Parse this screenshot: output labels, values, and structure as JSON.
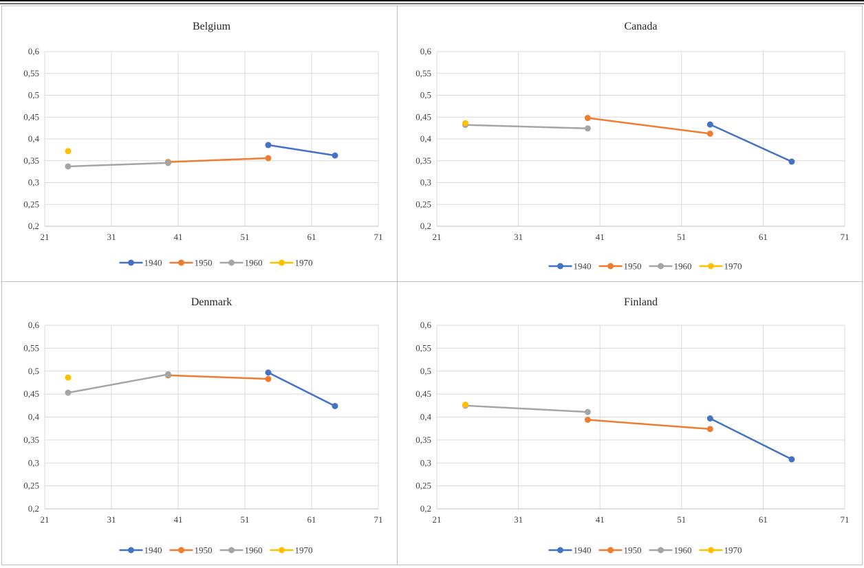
{
  "chart_data": [
    {
      "type": "line",
      "title": "Belgium",
      "xlim": [
        21,
        71
      ],
      "ylim": [
        0.2,
        0.6
      ],
      "xticks": [
        "21",
        "31",
        "41",
        "51",
        "61",
        "71"
      ],
      "yticks": [
        "0,2",
        "0,25",
        "0,3",
        "0,35",
        "0,4",
        "0,45",
        "0,5",
        "0,55",
        "0,6"
      ],
      "grid": "vertical and horizontal",
      "legend": "bottom",
      "series": [
        {
          "name": "1940",
          "color": "#4472C4",
          "points": [
            [
              54.5,
              0.386
            ],
            [
              64.5,
              0.362
            ]
          ]
        },
        {
          "name": "1950",
          "color": "#ED7D31",
          "points": [
            [
              39.5,
              0.347
            ],
            [
              54.5,
              0.356
            ]
          ]
        },
        {
          "name": "1960",
          "color": "#A5A5A5",
          "points": [
            [
              24.5,
              0.337
            ],
            [
              39.5,
              0.345
            ]
          ]
        },
        {
          "name": "1970",
          "color": "#FFC000",
          "points": [
            [
              24.5,
              0.372
            ]
          ]
        }
      ]
    },
    {
      "type": "line",
      "title": "Canada",
      "xlim": [
        21,
        71
      ],
      "ylim": [
        0.2,
        0.6
      ],
      "xticks": [
        "21",
        "31",
        "41",
        "51",
        "61",
        "71"
      ],
      "yticks": [
        "0,2",
        "0,25",
        "0,3",
        "0,35",
        "0,4",
        "0,45",
        "0,5",
        "0,55",
        "0,6"
      ],
      "grid": "vertical and horizontal",
      "legend": "bottom",
      "series": [
        {
          "name": "1940",
          "color": "#4472C4",
          "points": [
            [
              54.5,
              0.433
            ],
            [
              64.5,
              0.348
            ]
          ]
        },
        {
          "name": "1950",
          "color": "#ED7D31",
          "points": [
            [
              39.5,
              0.448
            ],
            [
              54.5,
              0.412
            ]
          ]
        },
        {
          "name": "1960",
          "color": "#A5A5A5",
          "points": [
            [
              24.5,
              0.432
            ],
            [
              39.5,
              0.424
            ]
          ]
        },
        {
          "name": "1970",
          "color": "#FFC000",
          "points": [
            [
              24.5,
              0.436
            ]
          ]
        }
      ]
    },
    {
      "type": "line",
      "title": "Denmark",
      "xlim": [
        21,
        71
      ],
      "ylim": [
        0.2,
        0.6
      ],
      "xticks": [
        "21",
        "31",
        "41",
        "51",
        "61",
        "71"
      ],
      "yticks": [
        "0,2",
        "0,25",
        "0,3",
        "0,35",
        "0,4",
        "0,45",
        "0,5",
        "0,55",
        "0,6"
      ],
      "grid": "vertical and horizontal",
      "legend": "bottom",
      "series": [
        {
          "name": "1940",
          "color": "#4472C4",
          "points": [
            [
              54.5,
              0.497
            ],
            [
              64.5,
              0.424
            ]
          ]
        },
        {
          "name": "1950",
          "color": "#ED7D31",
          "points": [
            [
              39.5,
              0.491
            ],
            [
              54.5,
              0.483
            ]
          ]
        },
        {
          "name": "1960",
          "color": "#A5A5A5",
          "points": [
            [
              24.5,
              0.453
            ],
            [
              39.5,
              0.493
            ]
          ]
        },
        {
          "name": "1970",
          "color": "#FFC000",
          "points": [
            [
              24.5,
              0.486
            ]
          ]
        }
      ]
    },
    {
      "type": "line",
      "title": "Finland",
      "xlim": [
        21,
        71
      ],
      "ylim": [
        0.2,
        0.6
      ],
      "xticks": [
        "21",
        "31",
        "41",
        "51",
        "61",
        "71"
      ],
      "yticks": [
        "0,2",
        "0,25",
        "0,3",
        "0,35",
        "0,4",
        "0,45",
        "0,5",
        "0,55",
        "0,6"
      ],
      "grid": "vertical and horizontal",
      "legend": "bottom",
      "series": [
        {
          "name": "1940",
          "color": "#4472C4",
          "points": [
            [
              54.5,
              0.397
            ],
            [
              64.5,
              0.308
            ]
          ]
        },
        {
          "name": "1950",
          "color": "#ED7D31",
          "points": [
            [
              39.5,
              0.394
            ],
            [
              54.5,
              0.374
            ]
          ]
        },
        {
          "name": "1960",
          "color": "#A5A5A5",
          "points": [
            [
              24.5,
              0.425
            ],
            [
              39.5,
              0.411
            ]
          ]
        },
        {
          "name": "1970",
          "color": "#FFC000",
          "points": [
            [
              24.5,
              0.427
            ]
          ]
        }
      ]
    }
  ]
}
